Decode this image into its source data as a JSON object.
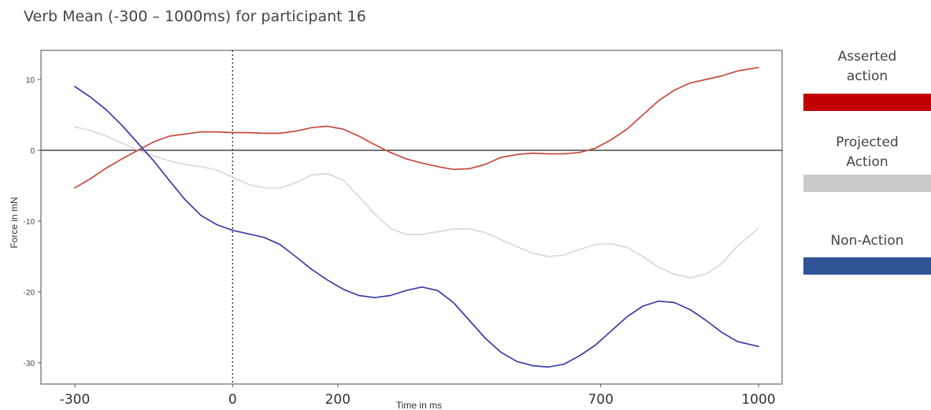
{
  "title": "Verb Mean (-300 – 1000ms) for participant 16",
  "legend": [
    {
      "label": "Asserted\naction",
      "color": "#c00000"
    },
    {
      "label": "Projected\nAction",
      "color": "#c9c9c9"
    },
    {
      "label": "Non-Action",
      "color": "#2f5597"
    }
  ],
  "chart_data": {
    "type": "line",
    "xlabel": "Time in ms",
    "ylabel": "Force in mN",
    "xlim": [
      -300,
      1000
    ],
    "ylim": [
      -33,
      14
    ],
    "x_ticks": [
      {
        "value": -300,
        "label": "-300"
      },
      {
        "value": 0,
        "label": "0"
      },
      {
        "value": 200,
        "label": "200"
      },
      {
        "value": 700,
        "label": "700"
      },
      {
        "value": 1000,
        "label": "1000"
      }
    ],
    "y_ticks": [
      {
        "value": 10,
        "label": "10"
      },
      {
        "value": 0,
        "label": "0"
      },
      {
        "value": -10,
        "label": "-10"
      },
      {
        "value": -20,
        "label": "-20"
      },
      {
        "value": -30,
        "label": "-30"
      }
    ],
    "hline": 0,
    "vline": 0,
    "grid": false,
    "legend_position": "right",
    "series": [
      {
        "name": "Asserted action",
        "color": "#c8483f",
        "points": [
          [
            -300,
            -5.3
          ],
          [
            -270,
            -4
          ],
          [
            -240,
            -2.5
          ],
          [
            -210,
            -1.2
          ],
          [
            -180,
            0
          ],
          [
            -150,
            1.2
          ],
          [
            -120,
            2
          ],
          [
            -90,
            2.3
          ],
          [
            -60,
            2.6
          ],
          [
            -30,
            2.6
          ],
          [
            0,
            2.5
          ],
          [
            30,
            2.5
          ],
          [
            60,
            2.4
          ],
          [
            90,
            2.4
          ],
          [
            120,
            2.7
          ],
          [
            150,
            3.2
          ],
          [
            180,
            3.4
          ],
          [
            210,
            3
          ],
          [
            240,
            2
          ],
          [
            270,
            0.8
          ],
          [
            300,
            -0.3
          ],
          [
            330,
            -1.2
          ],
          [
            360,
            -1.8
          ],
          [
            390,
            -2.3
          ],
          [
            420,
            -2.7
          ],
          [
            450,
            -2.6
          ],
          [
            480,
            -2
          ],
          [
            510,
            -1
          ],
          [
            540,
            -0.6
          ],
          [
            570,
            -0.4
          ],
          [
            600,
            -0.5
          ],
          [
            630,
            -0.5
          ],
          [
            660,
            -0.3
          ],
          [
            690,
            0.3
          ],
          [
            720,
            1.5
          ],
          [
            750,
            3
          ],
          [
            780,
            5
          ],
          [
            810,
            7
          ],
          [
            840,
            8.5
          ],
          [
            870,
            9.5
          ],
          [
            900,
            10
          ],
          [
            930,
            10.5
          ],
          [
            960,
            11.2
          ],
          [
            1000,
            11.7
          ]
        ]
      },
      {
        "name": "Projected Action",
        "color": "#d9d9d9",
        "points": [
          [
            -300,
            3.3
          ],
          [
            -270,
            2.8
          ],
          [
            -240,
            2
          ],
          [
            -210,
            1
          ],
          [
            -180,
            0
          ],
          [
            -150,
            -0.8
          ],
          [
            -120,
            -1.5
          ],
          [
            -90,
            -2
          ],
          [
            -60,
            -2.3
          ],
          [
            -30,
            -2.8
          ],
          [
            0,
            -3.8
          ],
          [
            30,
            -4.8
          ],
          [
            60,
            -5.3
          ],
          [
            90,
            -5.3
          ],
          [
            120,
            -4.6
          ],
          [
            150,
            -3.5
          ],
          [
            180,
            -3.3
          ],
          [
            210,
            -4.2
          ],
          [
            240,
            -6.5
          ],
          [
            270,
            -9
          ],
          [
            300,
            -11
          ],
          [
            330,
            -11.9
          ],
          [
            360,
            -11.9
          ],
          [
            390,
            -11.5
          ],
          [
            420,
            -11.1
          ],
          [
            450,
            -11.1
          ],
          [
            480,
            -11.6
          ],
          [
            510,
            -12.6
          ],
          [
            540,
            -13.6
          ],
          [
            570,
            -14.5
          ],
          [
            600,
            -15
          ],
          [
            630,
            -14.8
          ],
          [
            660,
            -14
          ],
          [
            690,
            -13.3
          ],
          [
            720,
            -13.2
          ],
          [
            750,
            -13.7
          ],
          [
            780,
            -15
          ],
          [
            810,
            -16.5
          ],
          [
            840,
            -17.5
          ],
          [
            870,
            -18
          ],
          [
            900,
            -17.5
          ],
          [
            930,
            -16
          ],
          [
            960,
            -13.5
          ],
          [
            1000,
            -11
          ]
        ]
      },
      {
        "name": "Non-Action",
        "color": "#3b3ca8",
        "points": [
          [
            -300,
            9
          ],
          [
            -270,
            7.5
          ],
          [
            -240,
            5.7
          ],
          [
            -210,
            3.5
          ],
          [
            -180,
            1
          ],
          [
            -150,
            -1.5
          ],
          [
            -120,
            -4.3
          ],
          [
            -90,
            -7
          ],
          [
            -60,
            -9.2
          ],
          [
            -30,
            -10.5
          ],
          [
            0,
            -11.3
          ],
          [
            30,
            -11.8
          ],
          [
            60,
            -12.3
          ],
          [
            90,
            -13.3
          ],
          [
            120,
            -15
          ],
          [
            150,
            -16.8
          ],
          [
            180,
            -18.3
          ],
          [
            210,
            -19.6
          ],
          [
            240,
            -20.5
          ],
          [
            270,
            -20.8
          ],
          [
            300,
            -20.5
          ],
          [
            330,
            -19.8
          ],
          [
            360,
            -19.3
          ],
          [
            390,
            -19.8
          ],
          [
            420,
            -21.5
          ],
          [
            450,
            -24
          ],
          [
            480,
            -26.5
          ],
          [
            510,
            -28.5
          ],
          [
            540,
            -29.8
          ],
          [
            570,
            -30.4
          ],
          [
            600,
            -30.6
          ],
          [
            630,
            -30.2
          ],
          [
            660,
            -29
          ],
          [
            690,
            -27.5
          ],
          [
            720,
            -25.5
          ],
          [
            750,
            -23.5
          ],
          [
            780,
            -22
          ],
          [
            810,
            -21.3
          ],
          [
            840,
            -21.5
          ],
          [
            870,
            -22.5
          ],
          [
            900,
            -24
          ],
          [
            930,
            -25.7
          ],
          [
            960,
            -27
          ],
          [
            1000,
            -27.7
          ]
        ]
      }
    ]
  }
}
